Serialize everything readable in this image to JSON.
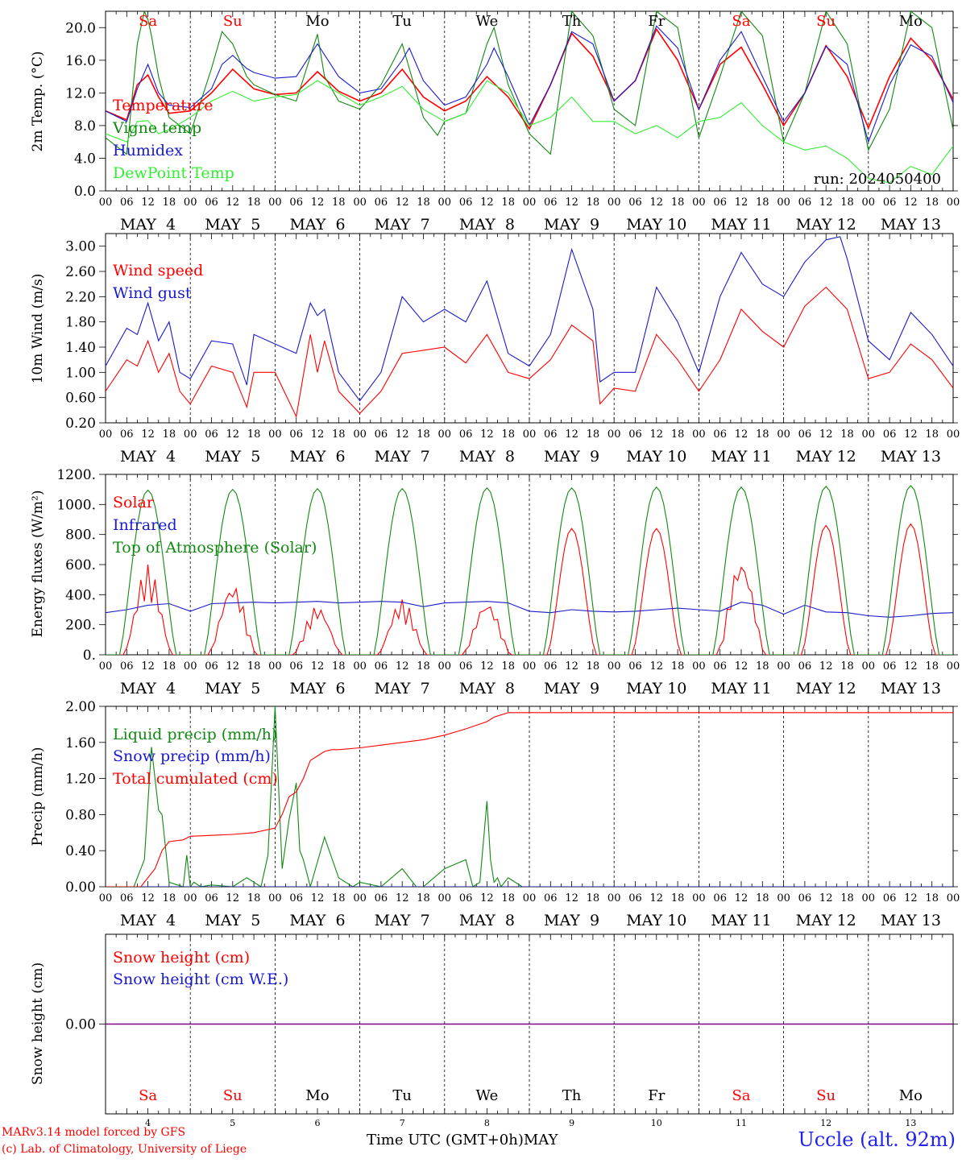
{
  "colors": {
    "red": "#ff0000",
    "green": "#118811",
    "blue": "#1a1acc",
    "lightgreen": "#33ee33",
    "purple": "#800080",
    "weekend_red": "#ff0000",
    "station_blue": "#2222ee"
  },
  "x_axis": {
    "hour_ticks": [
      "00",
      "06",
      "12",
      "18"
    ],
    "final_tick": "00",
    "date_labels": [
      "MAY  4",
      "MAY  5",
      "MAY  6",
      "MAY  7",
      "MAY  8",
      "MAY  9",
      "MAY 10",
      "MAY 11",
      "MAY 12",
      "MAY 13"
    ],
    "day_names": [
      "Sa",
      "Su",
      "Mo",
      "Tu",
      "We",
      "Th",
      "Fr",
      "Sa",
      "Su",
      "Mo"
    ],
    "day_name_weekend": [
      true,
      true,
      false,
      false,
      false,
      false,
      false,
      true,
      true,
      false
    ],
    "day_numbers": [
      "4",
      "5",
      "6",
      "7",
      "8",
      "9",
      "10",
      "11",
      "12",
      "13"
    ],
    "axis_title": "Time UTC (GMT+0h)",
    "month_label": "MAY"
  },
  "footer": {
    "model_line": "MARv3.14 model forced by GFS",
    "credit_line": "(c) Lab. of Climatology, University of Liege",
    "station": "Uccle (alt. 92m)"
  },
  "chart_data": [
    {
      "id": "temperature",
      "type": "line",
      "ylabel": "2m Temp. (°C)",
      "ylim": [
        0,
        22
      ],
      "ticks": [
        "0.0",
        "4.0",
        "8.0",
        "12.0",
        "16.0",
        "20.0"
      ],
      "run_label": "run: 2024050400",
      "x_unit": "hours since MAY 4 00 UTC",
      "series": [
        {
          "name": "Temperature",
          "color": "red",
          "x": [
            0,
            6,
            9,
            12,
            15,
            18,
            24,
            30,
            36,
            42,
            48,
            54,
            60,
            66,
            72,
            78,
            84,
            90,
            96,
            102,
            108,
            114,
            120,
            126,
            132,
            138,
            144,
            150,
            156,
            162,
            168,
            174,
            180,
            186,
            192,
            198,
            204,
            210,
            216,
            222,
            228,
            234,
            240
          ],
          "y": [
            9.8,
            8.7,
            13.0,
            14.2,
            11.5,
            9.5,
            9.8,
            12.0,
            14.9,
            12.5,
            11.8,
            12.0,
            14.6,
            12.2,
            11.0,
            12.0,
            14.9,
            11.5,
            9.8,
            11.0,
            14.0,
            11.5,
            7.6,
            13.0,
            19.3,
            16.5,
            11.0,
            13.5,
            19.8,
            16.0,
            10.0,
            15.5,
            17.6,
            13.0,
            8.0,
            12.0,
            17.8,
            14.0,
            7.7,
            14.0,
            18.7,
            16.0,
            11.2
          ]
        },
        {
          "name": "Vigne temp",
          "color": "green",
          "x": [
            0,
            6,
            9,
            11,
            12,
            13,
            15,
            18,
            24,
            30,
            33,
            36,
            40,
            42,
            48,
            54,
            60,
            62,
            66,
            72,
            78,
            84,
            86,
            90,
            94,
            96,
            102,
            108,
            110,
            114,
            120,
            126,
            132,
            138,
            144,
            150,
            156,
            162,
            168,
            174,
            180,
            186,
            192,
            198,
            204,
            210,
            216,
            222,
            228,
            234,
            240
          ],
          "y": [
            6.5,
            4.5,
            18.0,
            22.0,
            21.0,
            19.0,
            14.0,
            9.0,
            7.0,
            15.0,
            19.5,
            18.0,
            14.0,
            13.0,
            11.8,
            11.0,
            19.2,
            14.0,
            11.0,
            10.0,
            13.0,
            18.0,
            15.0,
            9.0,
            6.8,
            8.5,
            9.5,
            18.0,
            20.0,
            13.0,
            7.0,
            4.5,
            22.0,
            19.0,
            10.0,
            8.0,
            22.0,
            20.0,
            6.5,
            14.0,
            22.0,
            19.0,
            6.0,
            12.0,
            22.0,
            18.0,
            5.0,
            10.0,
            22.0,
            20.0,
            7.5
          ]
        },
        {
          "name": "Humidex",
          "color": "blue",
          "x": [
            0,
            6,
            9,
            12,
            15,
            18,
            24,
            30,
            33,
            36,
            40,
            42,
            48,
            54,
            60,
            66,
            72,
            78,
            84,
            86,
            90,
            96,
            102,
            108,
            110,
            114,
            120,
            126,
            132,
            138,
            144,
            150,
            156,
            162,
            168,
            174,
            180,
            186,
            192,
            198,
            204,
            210,
            216,
            222,
            228,
            234,
            240
          ],
          "y": [
            9.8,
            8.5,
            12.5,
            15.5,
            12.0,
            10.5,
            10.2,
            12.5,
            15.5,
            16.6,
            15.0,
            14.5,
            13.8,
            14.0,
            18.0,
            14.0,
            12.0,
            12.5,
            16.0,
            17.5,
            13.5,
            10.5,
            11.5,
            15.5,
            17.5,
            14.0,
            8.0,
            13.0,
            19.5,
            18.0,
            11.0,
            13.5,
            20.2,
            17.5,
            10.0,
            16.0,
            19.5,
            14.0,
            8.5,
            12.0,
            17.7,
            15.5,
            6.0,
            13.0,
            17.9,
            16.5,
            10.8
          ]
        },
        {
          "name": "DewPoint Temp",
          "color": "lightgreen",
          "x": [
            0,
            6,
            9,
            12,
            15,
            18,
            24,
            30,
            36,
            42,
            48,
            54,
            60,
            66,
            72,
            78,
            84,
            90,
            96,
            102,
            108,
            114,
            120,
            126,
            132,
            138,
            144,
            150,
            156,
            162,
            168,
            174,
            180,
            186,
            192,
            198,
            204,
            210,
            216,
            222,
            228,
            234,
            240
          ],
          "y": [
            7.0,
            6.0,
            8.5,
            8.6,
            7.0,
            7.5,
            9.0,
            11.0,
            12.2,
            11.0,
            11.5,
            11.8,
            13.5,
            12.0,
            10.5,
            11.5,
            12.8,
            10.0,
            8.5,
            9.5,
            13.5,
            12.0,
            8.0,
            9.0,
            11.5,
            8.5,
            8.5,
            7.0,
            8.0,
            6.5,
            8.5,
            9.0,
            10.8,
            8.0,
            6.0,
            5.0,
            5.5,
            4.0,
            1.5,
            1.0,
            3.0,
            2.0,
            5.5
          ]
        }
      ]
    },
    {
      "id": "wind",
      "type": "line",
      "ylabel": "10m Wind (m/s)",
      "ylim": [
        0.2,
        3.2
      ],
      "ticks": [
        "0.20",
        "0.60",
        "1.00",
        "1.40",
        "1.80",
        "2.20",
        "2.60",
        "3.00"
      ],
      "x_unit": "hours since MAY 4 00 UTC",
      "series": [
        {
          "name": "Wind speed",
          "color": "red",
          "x": [
            0,
            6,
            9,
            12,
            15,
            18,
            21,
            24,
            30,
            36,
            40,
            42,
            48,
            54,
            58,
            60,
            62,
            66,
            72,
            78,
            84,
            90,
            96,
            102,
            108,
            114,
            120,
            126,
            132,
            138,
            140,
            144,
            150,
            156,
            162,
            168,
            174,
            180,
            186,
            192,
            198,
            204,
            210,
            216,
            222,
            228,
            234,
            240
          ],
          "y": [
            0.7,
            1.2,
            1.1,
            1.5,
            1.0,
            1.3,
            0.7,
            0.5,
            1.1,
            1.0,
            0.45,
            1.0,
            1.0,
            0.3,
            1.6,
            1.0,
            1.5,
            0.7,
            0.35,
            0.7,
            1.3,
            1.35,
            1.4,
            1.15,
            1.6,
            1.0,
            0.9,
            1.2,
            1.75,
            1.5,
            0.5,
            0.75,
            0.7,
            1.6,
            1.2,
            0.7,
            1.2,
            2.0,
            1.65,
            1.4,
            2.05,
            2.35,
            2.0,
            0.9,
            1.0,
            1.45,
            1.2,
            0.75
          ]
        },
        {
          "name": "Wind gust",
          "color": "blue",
          "x": [
            0,
            6,
            9,
            12,
            15,
            18,
            21,
            24,
            30,
            36,
            40,
            42,
            48,
            54,
            58,
            60,
            62,
            66,
            72,
            78,
            84,
            90,
            96,
            102,
            108,
            114,
            120,
            126,
            132,
            138,
            140,
            144,
            150,
            156,
            162,
            168,
            174,
            180,
            186,
            192,
            198,
            204,
            208,
            210,
            216,
            222,
            228,
            234,
            240
          ],
          "y": [
            1.1,
            1.7,
            1.6,
            2.1,
            1.5,
            1.8,
            1.0,
            0.9,
            1.5,
            1.45,
            0.8,
            1.6,
            1.45,
            1.3,
            2.1,
            1.9,
            2.0,
            1.0,
            0.55,
            1.0,
            2.2,
            1.8,
            2.0,
            1.8,
            2.45,
            1.3,
            1.1,
            1.6,
            2.95,
            2.0,
            0.85,
            1.0,
            1.0,
            2.35,
            1.8,
            1.0,
            2.2,
            2.9,
            2.4,
            2.2,
            2.75,
            3.1,
            3.15,
            2.8,
            1.5,
            1.2,
            1.95,
            1.6,
            1.1
          ]
        }
      ]
    },
    {
      "id": "fluxes",
      "type": "line",
      "ylabel": "Energy fluxes (W/m²)",
      "ylim": [
        0,
        1200
      ],
      "ticks": [
        "0.",
        "200.",
        "400.",
        "600.",
        "800.",
        "1000.",
        "1200."
      ],
      "x_unit": "hours since MAY 4 00 UTC",
      "toa_peaks": [
        1095,
        1100,
        1105,
        1105,
        1110,
        1110,
        1115,
        1115,
        1120,
        1125
      ],
      "solar_peaks": [
        600,
        480,
        330,
        370,
        360,
        840,
        840,
        650,
        860,
        870
      ],
      "series": [
        {
          "name": "Solar",
          "color": "red"
        },
        {
          "name": "Infrared",
          "color": "blue",
          "x": [
            0,
            6,
            12,
            18,
            24,
            30,
            36,
            42,
            48,
            54,
            60,
            66,
            72,
            78,
            84,
            90,
            96,
            102,
            108,
            114,
            120,
            126,
            132,
            138,
            144,
            150,
            156,
            162,
            168,
            174,
            180,
            186,
            192,
            198,
            204,
            210,
            216,
            222,
            228,
            234,
            240
          ],
          "y": [
            280,
            300,
            330,
            340,
            290,
            340,
            345,
            350,
            345,
            350,
            355,
            345,
            350,
            355,
            350,
            320,
            345,
            350,
            355,
            345,
            290,
            280,
            300,
            290,
            285,
            290,
            300,
            310,
            300,
            290,
            350,
            330,
            270,
            330,
            285,
            280,
            260,
            250,
            260,
            275,
            280
          ]
        },
        {
          "name": "Top of Atmosphere (Solar)",
          "color": "green"
        }
      ]
    },
    {
      "id": "precip",
      "type": "line",
      "ylabel": "Precip (mm/h)",
      "ylim": [
        0,
        2.0
      ],
      "ticks": [
        "0.00",
        "0.40",
        "0.80",
        "1.20",
        "1.60",
        "2.00"
      ],
      "x_unit": "hours since MAY 4 00 UTC",
      "series": [
        {
          "name": "Liquid precip (mm/h)",
          "color": "green",
          "x": [
            0,
            8,
            11,
            13,
            15,
            16,
            18,
            22,
            23,
            24,
            25,
            27,
            30,
            36,
            40,
            44,
            46,
            48,
            50,
            52,
            54,
            55,
            56,
            58,
            62,
            66,
            70,
            72,
            78,
            84,
            88,
            90,
            96,
            102,
            104,
            106,
            108,
            109,
            110,
            111,
            112,
            114,
            118,
            240
          ],
          "y": [
            0,
            0,
            0.3,
            1.55,
            0.85,
            0.8,
            0.05,
            0,
            0.35,
            0,
            0.05,
            0,
            0.02,
            0,
            0.1,
            0,
            0.35,
            2.0,
            0.2,
            0.75,
            1.15,
            0.4,
            0.3,
            0,
            0.55,
            0.1,
            0,
            0.05,
            0,
            0.2,
            0,
            0,
            0.2,
            0.3,
            0,
            0.05,
            0.95,
            0.3,
            0.05,
            0.1,
            0,
            0.1,
            0,
            0
          ]
        },
        {
          "name": "Snow precip (mm/h)",
          "color": "blue",
          "x": [
            0,
            240
          ],
          "y": [
            0,
            0
          ]
        },
        {
          "name": "Total cumulated (cm)",
          "color": "red",
          "x": [
            0,
            10,
            14,
            16,
            18,
            22,
            24,
            30,
            36,
            42,
            48,
            50,
            52,
            54,
            56,
            58,
            60,
            62,
            64,
            66,
            72,
            78,
            84,
            90,
            96,
            102,
            108,
            110,
            114,
            240
          ],
          "y": [
            0,
            0,
            0.2,
            0.4,
            0.5,
            0.52,
            0.56,
            0.57,
            0.58,
            0.6,
            0.65,
            0.8,
            1.0,
            1.05,
            1.2,
            1.4,
            1.45,
            1.5,
            1.52,
            1.52,
            1.54,
            1.57,
            1.6,
            1.63,
            1.68,
            1.75,
            1.83,
            1.88,
            1.93,
            1.93
          ]
        }
      ]
    },
    {
      "id": "snow",
      "type": "line",
      "ylabel": "Snow height (cm)",
      "ticks": [
        "0.00"
      ],
      "x_unit": "hours since MAY 4 00 UTC",
      "series": [
        {
          "name": "Snow height (cm)",
          "color": "red",
          "x": [
            0,
            240
          ],
          "y": [
            0,
            0
          ]
        },
        {
          "name": "Snow height (cm W.E.)",
          "color": "blue",
          "x": [
            0,
            240
          ],
          "y": [
            0,
            0
          ]
        }
      ]
    }
  ]
}
